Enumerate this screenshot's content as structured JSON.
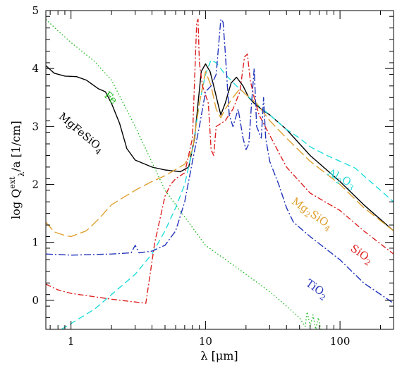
{
  "chart_data": {
    "type": "line",
    "xlabel": "λ [μm]",
    "ylabel": "log Qλext/a [1/cm]",
    "ylabel_parts": {
      "pre": "log Q",
      "sup": "ext",
      "sub": "λ",
      "post": "/a [1/cm]"
    },
    "xscale": "log",
    "xlim": [
      0.65,
      250
    ],
    "ylim": [
      -0.5,
      5
    ],
    "xticks": [
      {
        "value": 1,
        "label": "1"
      },
      {
        "value": 10,
        "label": "10"
      },
      {
        "value": 100,
        "label": "100"
      }
    ],
    "yticks": [
      {
        "value": 0,
        "label": "0"
      },
      {
        "value": 1,
        "label": "1"
      },
      {
        "value": 2,
        "label": "2"
      },
      {
        "value": 3,
        "label": "3"
      },
      {
        "value": 4,
        "label": "4"
      },
      {
        "value": 5,
        "label": "5"
      }
    ],
    "grid": false,
    "series": [
      {
        "name": "MgFeSiO4",
        "label_parts": [
          [
            "Mg",
            ""
          ],
          [
            "Fe",
            ""
          ],
          [
            "SiO",
            ""
          ],
          [
            "4",
            "sub"
          ]
        ],
        "color": "#000000",
        "dash": "",
        "points": [
          [
            0.65,
            4.05
          ],
          [
            0.75,
            3.92
          ],
          [
            0.9,
            3.87
          ],
          [
            1.1,
            3.86
          ],
          [
            1.3,
            3.8
          ],
          [
            1.6,
            3.65
          ],
          [
            1.8,
            3.6
          ],
          [
            2.0,
            3.4
          ],
          [
            2.3,
            3.05
          ],
          [
            2.6,
            2.62
          ],
          [
            3.0,
            2.42
          ],
          [
            4.0,
            2.3
          ],
          [
            5.0,
            2.25
          ],
          [
            6.5,
            2.22
          ],
          [
            7.5,
            2.3
          ],
          [
            8.3,
            2.8
          ],
          [
            8.8,
            3.4
          ],
          [
            9.3,
            3.95
          ],
          [
            10.0,
            4.08
          ],
          [
            10.8,
            3.95
          ],
          [
            11.5,
            3.7
          ],
          [
            12.5,
            3.35
          ],
          [
            13.0,
            3.2
          ],
          [
            14.0,
            3.4
          ],
          [
            15.5,
            3.75
          ],
          [
            17.0,
            3.85
          ],
          [
            19.0,
            3.7
          ],
          [
            21.0,
            3.5
          ],
          [
            23.0,
            3.4
          ],
          [
            26.0,
            3.3
          ],
          [
            30.0,
            3.2
          ],
          [
            40.0,
            2.95
          ],
          [
            60.0,
            2.5
          ],
          [
            100.0,
            2.05
          ],
          [
            150.0,
            1.65
          ],
          [
            250.0,
            1.2
          ]
        ]
      },
      {
        "name": "Fe",
        "label_parts": [
          [
            "Fe",
            ""
          ]
        ],
        "color": "#22bb22",
        "dash": "1.5 3",
        "points": [
          [
            0.65,
            4.85
          ],
          [
            0.8,
            4.65
          ],
          [
            1.0,
            4.45
          ],
          [
            1.5,
            4.12
          ],
          [
            2.0,
            3.8
          ],
          [
            3.0,
            3.0
          ],
          [
            5.0,
            1.9
          ],
          [
            10.0,
            0.95
          ],
          [
            20.0,
            0.45
          ],
          [
            30.0,
            0.15
          ],
          [
            40.0,
            -0.1
          ],
          [
            50.0,
            -0.3
          ],
          [
            55.0,
            -0.45
          ],
          [
            57.0,
            -0.2
          ],
          [
            60.0,
            -0.45
          ],
          [
            63.0,
            -0.25
          ],
          [
            66.0,
            -0.5
          ],
          [
            69.0,
            -0.3
          ],
          [
            72.0,
            -0.5
          ]
        ]
      },
      {
        "name": "Al2O3",
        "label_parts": [
          [
            "Al",
            ""
          ],
          [
            "2",
            "sub"
          ],
          [
            "O",
            ""
          ],
          [
            "3",
            "sub"
          ]
        ],
        "color": "#22dddd",
        "dash": "9 5",
        "points": [
          [
            0.85,
            -0.5
          ],
          [
            1.0,
            -0.4
          ],
          [
            1.5,
            -0.15
          ],
          [
            2.0,
            0.1
          ],
          [
            3.0,
            0.45
          ],
          [
            4.0,
            0.8
          ],
          [
            5.0,
            1.2
          ],
          [
            6.0,
            1.6
          ],
          [
            7.0,
            2.0
          ],
          [
            8.0,
            2.6
          ],
          [
            9.0,
            3.4
          ],
          [
            10.0,
            3.9
          ],
          [
            11.0,
            4.15
          ],
          [
            12.0,
            4.1
          ],
          [
            14.0,
            3.9
          ],
          [
            17.0,
            3.7
          ],
          [
            20.0,
            3.55
          ],
          [
            25.0,
            3.35
          ],
          [
            30.0,
            3.2
          ],
          [
            40.0,
            2.95
          ],
          [
            50.0,
            2.8
          ],
          [
            60.0,
            2.65
          ],
          [
            80.0,
            2.5
          ],
          [
            100.0,
            2.4
          ],
          [
            130.0,
            2.28
          ],
          [
            150.0,
            2.15
          ],
          [
            200.0,
            1.9
          ],
          [
            250.0,
            1.7
          ]
        ]
      },
      {
        "name": "Mg2SiO4",
        "label_parts": [
          [
            "Mg",
            ""
          ],
          [
            "2",
            "sub"
          ],
          [
            "SiO",
            ""
          ],
          [
            "4",
            "sub"
          ]
        ],
        "color": "#e0a030",
        "dash": "14 5",
        "points": [
          [
            0.65,
            1.35
          ],
          [
            0.75,
            1.18
          ],
          [
            0.9,
            1.12
          ],
          [
            1.0,
            1.1
          ],
          [
            1.3,
            1.2
          ],
          [
            1.6,
            1.4
          ],
          [
            2.0,
            1.65
          ],
          [
            3.0,
            1.9
          ],
          [
            4.0,
            2.05
          ],
          [
            5.0,
            2.15
          ],
          [
            7.0,
            2.35
          ],
          [
            8.0,
            2.6
          ],
          [
            9.0,
            3.4
          ],
          [
            10.0,
            3.95
          ],
          [
            11.0,
            3.7
          ],
          [
            12.0,
            3.3
          ],
          [
            13.0,
            3.15
          ],
          [
            14.0,
            3.3
          ],
          [
            16.0,
            3.5
          ],
          [
            18.0,
            3.65
          ],
          [
            20.0,
            3.55
          ],
          [
            24.0,
            3.4
          ],
          [
            30.0,
            3.1
          ],
          [
            40.0,
            2.8
          ],
          [
            60.0,
            2.4
          ],
          [
            100.0,
            2.0
          ],
          [
            150.0,
            1.6
          ],
          [
            250.0,
            1.2
          ]
        ]
      },
      {
        "name": "SiO2",
        "label_parts": [
          [
            "SiO",
            ""
          ],
          [
            "2",
            "sub"
          ]
        ],
        "color": "#dd2222",
        "dash": "8 3 2 3",
        "points": [
          [
            0.65,
            0.28
          ],
          [
            0.8,
            0.18
          ],
          [
            1.0,
            0.12
          ],
          [
            2.0,
            0.02
          ],
          [
            3.6,
            -0.05
          ],
          [
            4.2,
            1.0
          ],
          [
            5.0,
            1.8
          ],
          [
            5.5,
            2.0
          ],
          [
            6.0,
            2.1
          ],
          [
            7.0,
            2.2
          ],
          [
            8.0,
            2.8
          ],
          [
            8.6,
            4.8
          ],
          [
            8.8,
            4.85
          ],
          [
            9.0,
            4.1
          ],
          [
            9.5,
            3.7
          ],
          [
            10.5,
            3.4
          ],
          [
            11.0,
            2.6
          ],
          [
            11.5,
            2.5
          ],
          [
            12.0,
            3.0
          ],
          [
            14.0,
            3.1
          ],
          [
            16.0,
            3.3
          ],
          [
            18.0,
            3.6
          ],
          [
            19.5,
            4.2
          ],
          [
            20.5,
            4.25
          ],
          [
            21.5,
            3.8
          ],
          [
            23.0,
            3.5
          ],
          [
            25.0,
            3.2
          ],
          [
            30.0,
            2.85
          ],
          [
            40.0,
            2.3
          ],
          [
            60.0,
            1.85
          ],
          [
            100.0,
            1.55
          ],
          [
            150.0,
            1.2
          ],
          [
            250.0,
            0.8
          ]
        ]
      },
      {
        "name": "TiO2",
        "label_parts": [
          [
            "TiO",
            ""
          ],
          [
            "2",
            "sub"
          ]
        ],
        "color": "#2233bb",
        "dash": "10 3 2 3",
        "points": [
          [
            0.65,
            0.8
          ],
          [
            1.0,
            0.78
          ],
          [
            2.0,
            0.8
          ],
          [
            2.8,
            0.82
          ],
          [
            3.0,
            0.95
          ],
          [
            3.2,
            0.82
          ],
          [
            4.0,
            0.85
          ],
          [
            5.0,
            0.95
          ],
          [
            6.0,
            1.2
          ],
          [
            7.0,
            1.7
          ],
          [
            8.0,
            2.4
          ],
          [
            9.0,
            3.0
          ],
          [
            10.0,
            3.6
          ],
          [
            11.0,
            3.7
          ],
          [
            12.0,
            3.9
          ],
          [
            13.0,
            4.85
          ],
          [
            13.5,
            4.8
          ],
          [
            14.0,
            4.3
          ],
          [
            15.0,
            3.2
          ],
          [
            16.0,
            3.0
          ],
          [
            17.5,
            3.3
          ],
          [
            19.0,
            2.8
          ],
          [
            20.0,
            2.6
          ],
          [
            21.0,
            2.7
          ],
          [
            22.0,
            3.4
          ],
          [
            23.0,
            4.0
          ],
          [
            24.0,
            3.0
          ],
          [
            26.0,
            2.8
          ],
          [
            27.0,
            3.5
          ],
          [
            28.0,
            2.8
          ],
          [
            30.0,
            2.4
          ],
          [
            35.0,
            2.0
          ],
          [
            40.0,
            1.6
          ],
          [
            45.0,
            1.35
          ],
          [
            60.0,
            1.1
          ],
          [
            100.0,
            0.7
          ],
          [
            150.0,
            0.3
          ],
          [
            250.0,
            -0.05
          ]
        ]
      }
    ],
    "annotations": [
      {
        "series": "Fe",
        "x": 1.9,
        "y": 3.45,
        "rotate": 40
      },
      {
        "series": "MgFeSiO4",
        "x": 1.15,
        "y": 2.85,
        "rotate": 40
      },
      {
        "series": "Al2O3",
        "x": 100,
        "y": 2.05,
        "rotate": 28
      },
      {
        "series": "Mg2SiO4",
        "x": 60,
        "y": 1.45,
        "rotate": 35
      },
      {
        "series": "SiO2",
        "x": 140,
        "y": 0.75,
        "rotate": 35
      },
      {
        "series": "TiO2",
        "x": 65,
        "y": 0.15,
        "rotate": 35
      }
    ]
  }
}
